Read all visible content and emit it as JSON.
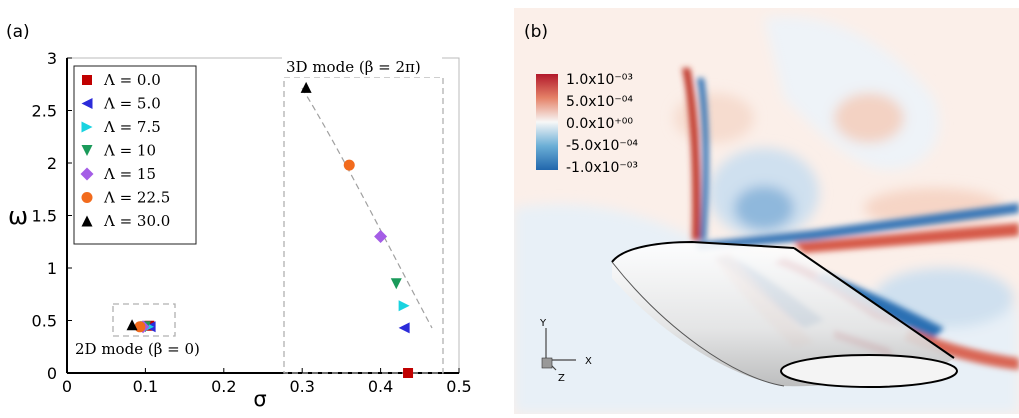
{
  "panels": {
    "a_label": "(a)",
    "b_label": "(b)"
  },
  "chart_data": {
    "type": "scatter",
    "xlabel": "σ",
    "ylabel": "ω",
    "xlim": [
      0,
      0.5
    ],
    "ylim": [
      0,
      3
    ],
    "x_ticks": [
      0,
      0.1,
      0.2,
      0.3,
      0.4,
      0.5
    ],
    "x_tick_labels": [
      "0",
      "0.1",
      "0.2",
      "0.3",
      "0.4",
      "0.5"
    ],
    "y_ticks": [
      0,
      0.5,
      1,
      1.5,
      2,
      2.5,
      3
    ],
    "y_tick_labels": [
      "0",
      "0.5",
      "1",
      "1.5",
      "2",
      "2.5",
      "3"
    ],
    "grid": false,
    "legend_position": "top-left",
    "annotations": {
      "mode3d": "3D mode (β = 2π)",
      "mode2d": "2D mode (β = 0)"
    },
    "series": [
      {
        "name": "Λ = 0.0",
        "marker": "square",
        "color": "#c00000",
        "points": [
          [
            0.435,
            0.0
          ],
          [
            0.105,
            0.45
          ]
        ]
      },
      {
        "name": "Λ = 5.0",
        "marker": "triangle-left",
        "color": "#2b2bd9",
        "points": [
          [
            0.43,
            0.43
          ],
          [
            0.106,
            0.44
          ]
        ]
      },
      {
        "name": "Λ = 7.5",
        "marker": "triangle-right",
        "color": "#19d3e0",
        "points": [
          [
            0.43,
            0.64
          ],
          [
            0.104,
            0.44
          ]
        ]
      },
      {
        "name": "Λ = 10",
        "marker": "triangle-down",
        "color": "#1a9a5a",
        "points": [
          [
            0.42,
            0.85
          ],
          [
            0.1,
            0.44
          ]
        ]
      },
      {
        "name": "Λ = 15",
        "marker": "diamond",
        "color": "#a45de6",
        "points": [
          [
            0.4,
            1.3
          ],
          [
            0.097,
            0.44
          ]
        ]
      },
      {
        "name": "Λ = 22.5",
        "marker": "circle",
        "color": "#f26b1d",
        "points": [
          [
            0.36,
            1.98
          ],
          [
            0.093,
            0.44
          ]
        ]
      },
      {
        "name": "Λ = 30.0",
        "marker": "triangle-up",
        "color": "#000000",
        "points": [
          [
            0.305,
            2.72
          ],
          [
            0.083,
            0.46
          ]
        ]
      }
    ]
  },
  "contour_legend": {
    "labels": [
      "1.0x10⁻⁰³",
      "5.0x10⁻⁰⁴",
      "0.0x10⁺⁰⁰",
      "-5.0x10⁻⁰⁴",
      "-1.0x10⁻⁰³"
    ],
    "colors": [
      "#b2182b",
      "#d6604d",
      "#f7f7f7",
      "#4393c3",
      "#2166ac"
    ]
  },
  "axes_triad": {
    "x": "X",
    "y": "Y",
    "z": "Z"
  }
}
